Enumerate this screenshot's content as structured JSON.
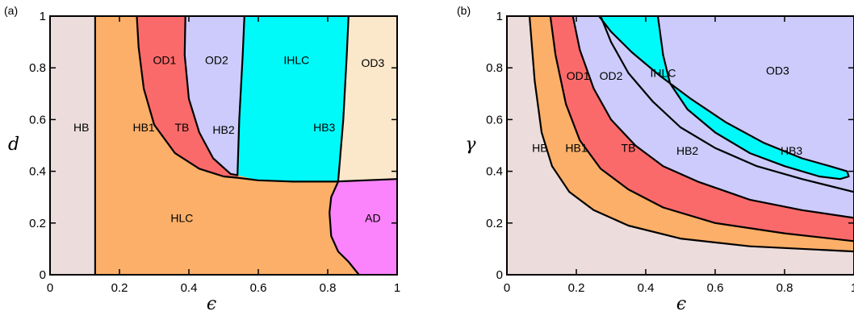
{
  "chart_data": [
    {
      "type": "area",
      "panel_label": "(a)",
      "xlabel": "ϵ",
      "ylabel": "d",
      "xlim": [
        0,
        1
      ],
      "ylim": [
        0,
        1
      ],
      "xticks": [
        "0",
        "0.2",
        "0.4",
        "0.6",
        "0.8",
        "1"
      ],
      "yticks": [
        "0",
        "0.2",
        "0.4",
        "0.6",
        "0.8",
        "1"
      ],
      "colors": {
        "HB": "#ecdcdc",
        "HLC": "#fbaf68",
        "OD1": "#fb6a6a",
        "OD2": "#cccbfb",
        "IHLC": "#00fafa",
        "OD3": "#fbe8cb",
        "AD": "#fb83fb"
      },
      "boundaries": [
        {
          "name": "HB-HB1",
          "points": [
            [
              0.13,
              0
            ],
            [
              0.13,
              1
            ]
          ]
        },
        {
          "name": "HB1-TB",
          "points": [
            [
              0.25,
              1
            ],
            [
              0.255,
              0.88
            ],
            [
              0.27,
              0.72
            ],
            [
              0.3,
              0.58
            ],
            [
              0.36,
              0.47
            ],
            [
              0.43,
              0.41
            ],
            [
              0.5,
              0.38
            ],
            [
              0.54,
              0.375
            ],
            [
              0.6,
              0.365
            ],
            [
              0.7,
              0.36
            ],
            [
              0.82,
              0.36
            ],
            [
              1.0,
              0.37
            ]
          ]
        },
        {
          "name": "TB-HB2",
          "points": [
            [
              0.39,
              1
            ],
            [
              0.388,
              0.85
            ],
            [
              0.4,
              0.68
            ],
            [
              0.43,
              0.55
            ],
            [
              0.47,
              0.45
            ],
            [
              0.52,
              0.39
            ],
            [
              0.54,
              0.385
            ]
          ]
        },
        {
          "name": "HB2-HB3",
          "points": [
            [
              0.56,
              1
            ],
            [
              0.555,
              0.85
            ],
            [
              0.545,
              0.6
            ],
            [
              0.54,
              0.385
            ]
          ]
        },
        {
          "name": "HB3-right",
          "points": [
            [
              0.86,
              1
            ],
            [
              0.855,
              0.85
            ],
            [
              0.845,
              0.6
            ],
            [
              0.83,
              0.36
            ]
          ]
        },
        {
          "name": "AD-HLC",
          "points": [
            [
              0.83,
              0.36
            ],
            [
              0.81,
              0.3
            ],
            [
              0.805,
              0.24
            ],
            [
              0.81,
              0.15
            ],
            [
              0.83,
              0.09
            ],
            [
              0.86,
              0.05
            ],
            [
              0.89,
              0.0
            ]
          ]
        }
      ],
      "region_labels": [
        {
          "text": "HB",
          "x": 0.09,
          "y": 0.57
        },
        {
          "text": "HB1",
          "x": 0.27,
          "y": 0.57
        },
        {
          "text": "TB",
          "x": 0.38,
          "y": 0.57
        },
        {
          "text": "HB2",
          "x": 0.5,
          "y": 0.56
        },
        {
          "text": "HB3",
          "x": 0.79,
          "y": 0.57
        },
        {
          "text": "OD1",
          "x": 0.33,
          "y": 0.83
        },
        {
          "text": "OD2",
          "x": 0.48,
          "y": 0.83
        },
        {
          "text": "IHLC",
          "x": 0.71,
          "y": 0.83
        },
        {
          "text": "OD3",
          "x": 0.93,
          "y": 0.82
        },
        {
          "text": "HLC",
          "x": 0.38,
          "y": 0.22
        },
        {
          "text": "AD",
          "x": 0.93,
          "y": 0.22
        }
      ]
    },
    {
      "type": "area",
      "panel_label": "(b)",
      "xlabel": "ϵ",
      "ylabel": "γ",
      "xlim": [
        0,
        1
      ],
      "ylim": [
        0,
        1
      ],
      "xticks": [
        "0",
        "0.2",
        "0.4",
        "0.6",
        "0.8",
        "1"
      ],
      "yticks": [
        "0",
        "0.2",
        "0.4",
        "0.6",
        "0.8",
        "1"
      ],
      "colors": {
        "HB": "#ecdcdc",
        "HB1": "#fbaf68",
        "TB": "#fb6a6a",
        "HB2": "#cccbfb",
        "HB3": "#00fafa",
        "OD3": "#cccbfb"
      },
      "boundaries": [
        {
          "name": "HB-HB1",
          "points": [
            [
              0.065,
              1
            ],
            [
              0.08,
              0.75
            ],
            [
              0.1,
              0.55
            ],
            [
              0.13,
              0.42
            ],
            [
              0.18,
              0.32
            ],
            [
              0.25,
              0.25
            ],
            [
              0.35,
              0.19
            ],
            [
              0.5,
              0.14
            ],
            [
              0.7,
              0.11
            ],
            [
              1.0,
              0.09
            ]
          ]
        },
        {
          "name": "HB1-TB",
          "points": [
            [
              0.125,
              1
            ],
            [
              0.14,
              0.85
            ],
            [
              0.17,
              0.66
            ],
            [
              0.21,
              0.52
            ],
            [
              0.27,
              0.41
            ],
            [
              0.35,
              0.33
            ],
            [
              0.45,
              0.26
            ],
            [
              0.6,
              0.2
            ],
            [
              0.8,
              0.16
            ],
            [
              1.0,
              0.13
            ]
          ]
        },
        {
          "name": "TB-HB2",
          "points": [
            [
              0.19,
              1
            ],
            [
              0.21,
              0.87
            ],
            [
              0.25,
              0.72
            ],
            [
              0.3,
              0.6
            ],
            [
              0.37,
              0.5
            ],
            [
              0.45,
              0.42
            ],
            [
              0.55,
              0.36
            ],
            [
              0.7,
              0.29
            ],
            [
              0.85,
              0.25
            ],
            [
              1.0,
              0.22
            ]
          ]
        },
        {
          "name": "HB2-OD3",
          "points": [
            [
              0.27,
              1
            ],
            [
              0.3,
              0.9
            ],
            [
              0.35,
              0.78
            ],
            [
              0.42,
              0.67
            ],
            [
              0.5,
              0.57
            ],
            [
              0.6,
              0.49
            ],
            [
              0.72,
              0.42
            ],
            [
              0.85,
              0.37
            ],
            [
              1.0,
              0.32
            ]
          ]
        },
        {
          "name": "HB3-loop",
          "points": [
            [
              0.265,
              1
            ],
            [
              0.3,
              0.94
            ],
            [
              0.36,
              0.86
            ],
            [
              0.44,
              0.77
            ],
            [
              0.53,
              0.68
            ],
            [
              0.63,
              0.59
            ],
            [
              0.74,
              0.51
            ],
            [
              0.85,
              0.45
            ],
            [
              0.93,
              0.42
            ],
            [
              0.98,
              0.4
            ],
            [
              0.985,
              0.38
            ],
            [
              0.96,
              0.37
            ],
            [
              0.9,
              0.38
            ],
            [
              0.8,
              0.42
            ],
            [
              0.7,
              0.47
            ],
            [
              0.6,
              0.55
            ],
            [
              0.52,
              0.64
            ],
            [
              0.47,
              0.74
            ],
            [
              0.45,
              0.85
            ],
            [
              0.44,
              0.95
            ],
            [
              0.435,
              1
            ]
          ]
        }
      ],
      "region_labels": [
        {
          "text": "HB",
          "x": 0.095,
          "y": 0.49
        },
        {
          "text": "HB1",
          "x": 0.2,
          "y": 0.49
        },
        {
          "text": "TB",
          "x": 0.35,
          "y": 0.49
        },
        {
          "text": "HB2",
          "x": 0.52,
          "y": 0.48
        },
        {
          "text": "HB3",
          "x": 0.82,
          "y": 0.48
        },
        {
          "text": "OD1",
          "x": 0.205,
          "y": 0.77
        },
        {
          "text": "OD2",
          "x": 0.3,
          "y": 0.77
        },
        {
          "text": "IHLC",
          "x": 0.45,
          "y": 0.78
        },
        {
          "text": "OD3",
          "x": 0.78,
          "y": 0.79
        }
      ]
    }
  ]
}
